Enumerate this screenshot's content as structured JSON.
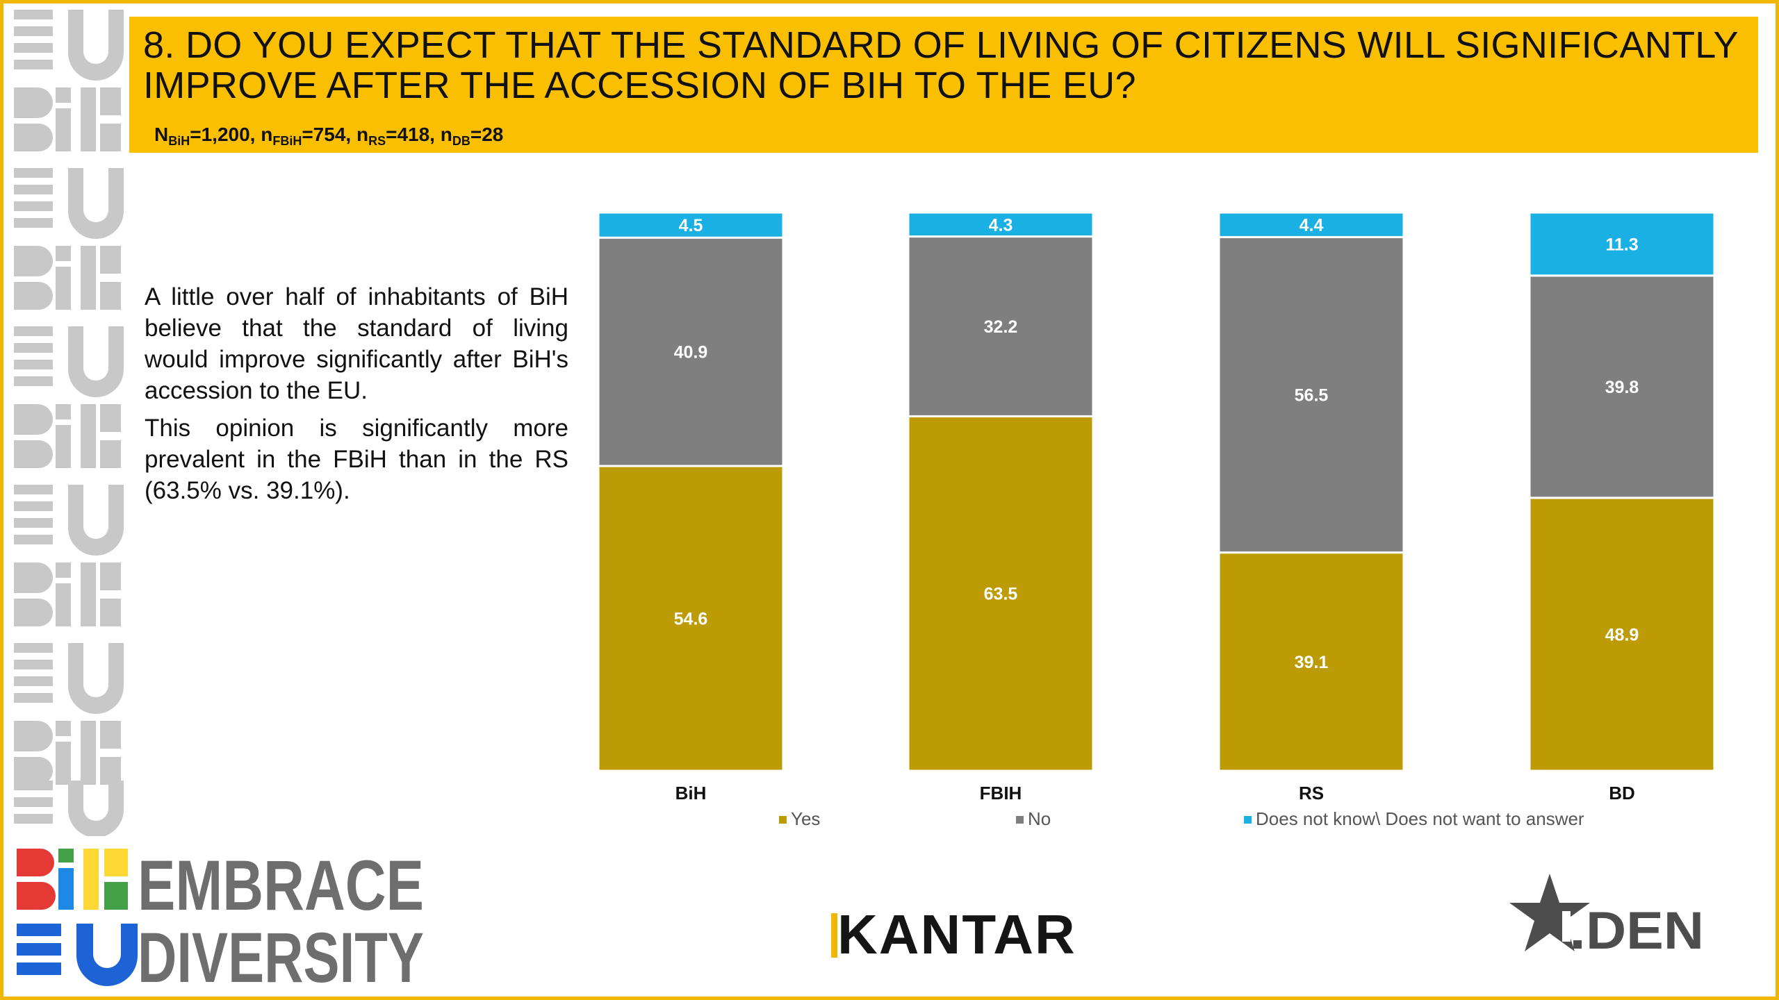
{
  "header": {
    "title": "8. DO YOU EXPECT THAT THE STANDARD OF LIVING OF CITIZENS WILL SIGNIFICANTLY IMPROVE AFTER THE ACCESSION OF BIH TO THE EU?",
    "sample_parts": [
      {
        "base": "N",
        "sub": "BiH",
        "val": "=1,200, "
      },
      {
        "base": "n",
        "sub": "FBiH",
        "val": "=754, "
      },
      {
        "base": "n",
        "sub": "RS",
        "val": "=418, "
      },
      {
        "base": "n",
        "sub": "DB",
        "val": "=28"
      }
    ]
  },
  "body": {
    "paragraph1": "A little over half of inhabitants of BiH believe that the standard of living would improve significantly after BiH's accession to the EU.",
    "paragraph2": "This opinion is significantly more prevalent in the FBiH than in the RS (63.5% vs. 39.1%)."
  },
  "colors": {
    "yes": "#bd9b07",
    "no": "#7f7f7f",
    "dk": "#1bb0e3",
    "header_bg": "#f9bf00",
    "frame": "#f2b705"
  },
  "chart_data": {
    "type": "bar",
    "stacked": true,
    "categories": [
      "BiH",
      "FBIH",
      "RS",
      "BD"
    ],
    "series": [
      {
        "name": "Yes",
        "color": "#bd9b07",
        "values": [
          54.6,
          63.5,
          39.1,
          48.9
        ]
      },
      {
        "name": "No",
        "color": "#7f7f7f",
        "values": [
          40.9,
          32.2,
          56.5,
          39.8
        ]
      },
      {
        "name": "Does not know\\ Does not want to answer",
        "color": "#1bb0e3",
        "values": [
          4.5,
          4.3,
          4.4,
          11.3
        ]
      }
    ],
    "ylim": [
      0,
      100
    ],
    "grid": false,
    "legend_position": "bottom"
  },
  "logos": {
    "embrace_line1": "EMBRACE",
    "embrace_line2": "DIVERSITY",
    "embrace_mark_top": "BiH",
    "embrace_mark_bottom": "EU",
    "kantar": "KANTAR",
    "den": "DEN"
  }
}
